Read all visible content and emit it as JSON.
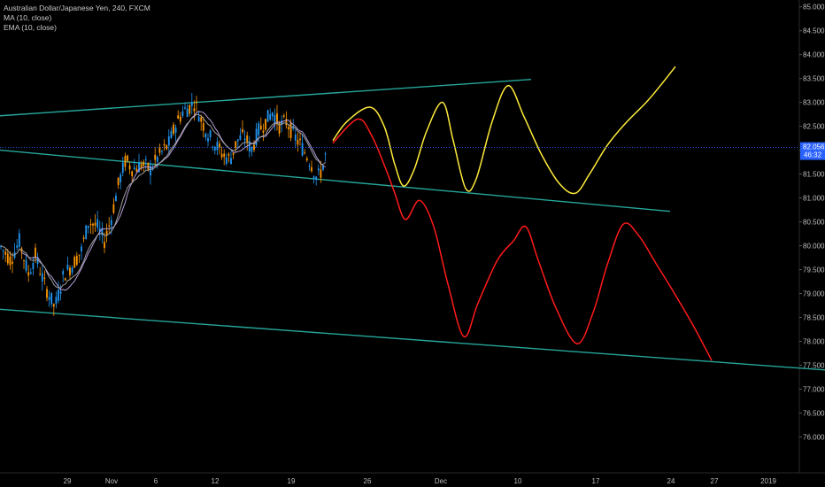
{
  "legend": {
    "title": "Australian Dollar/Japanese Yen, 240, FXCM",
    "ma": "MA (10, close)",
    "ema": "EMA (10, close)"
  },
  "colors": {
    "background": "#000000",
    "channel": "#26a69a",
    "forecast_up": "#ffeb3b",
    "forecast_down": "#ff1a1a",
    "candle_up": "#2196f3",
    "candle_down": "#ff9800",
    "ma": "#b39ddb",
    "ema": "#9e9e9e",
    "price_line": "#2962ff"
  },
  "chart_data": {
    "type": "line",
    "symbol": "AUDJPY",
    "x_axis_labels": [
      "29",
      "Nov",
      "6",
      "12",
      "19",
      "26",
      "Dec",
      "10",
      "17",
      "24",
      "27",
      "2019"
    ],
    "y_axis_labels": [
      "85.000",
      "84.500",
      "84.000",
      "83.500",
      "83.000",
      "82.500",
      "82.000",
      "81.500",
      "81.000",
      "80.500",
      "80.000",
      "79.500",
      "79.000",
      "78.500",
      "78.000",
      "77.500",
      "77.000",
      "76.500",
      "76.000"
    ],
    "ylim": [
      75.6,
      85.05
    ],
    "current_price": "82.056",
    "countdown": "46:32",
    "price_path": [
      [
        0,
        80.0
      ],
      [
        12,
        79.7
      ],
      [
        22,
        80.1
      ],
      [
        32,
        79.4
      ],
      [
        40,
        79.8
      ],
      [
        50,
        79.2
      ],
      [
        62,
        78.7
      ],
      [
        72,
        79.4
      ],
      [
        82,
        79.6
      ],
      [
        92,
        79.9
      ],
      [
        100,
        80.5
      ],
      [
        110,
        80.4
      ],
      [
        118,
        80.1
      ],
      [
        126,
        80.6
      ],
      [
        134,
        81.3
      ],
      [
        142,
        81.8
      ],
      [
        150,
        81.6
      ],
      [
        160,
        81.7
      ],
      [
        170,
        81.6
      ],
      [
        180,
        81.9
      ],
      [
        190,
        82.1
      ],
      [
        198,
        82.5
      ],
      [
        206,
        82.8
      ],
      [
        214,
        82.9
      ],
      [
        220,
        83.0
      ],
      [
        228,
        82.6
      ],
      [
        236,
        82.3
      ],
      [
        244,
        82.1
      ],
      [
        252,
        81.9
      ],
      [
        260,
        81.8
      ],
      [
        268,
        82.2
      ],
      [
        276,
        82.3
      ],
      [
        284,
        82.0
      ],
      [
        292,
        82.4
      ],
      [
        300,
        82.6
      ],
      [
        308,
        82.8
      ],
      [
        316,
        82.5
      ],
      [
        324,
        82.6
      ],
      [
        332,
        82.3
      ],
      [
        340,
        82.1
      ],
      [
        346,
        81.9
      ],
      [
        352,
        81.7
      ],
      [
        358,
        81.4
      ],
      [
        364,
        81.6
      ],
      [
        370,
        82.06
      ]
    ],
    "channel_lines": [
      {
        "from": [
          0,
          82.72
        ],
        "to": [
          600,
          83.48
        ]
      },
      {
        "from": [
          0,
          82.0
        ],
        "to": [
          757,
          80.72
        ]
      },
      {
        "from": [
          0,
          78.67
        ],
        "to": [
          932,
          77.4
        ]
      }
    ],
    "forecast_yellow": [
      [
        376,
        82.2
      ],
      [
        392,
        82.6
      ],
      [
        418,
        82.9
      ],
      [
        434,
        82.5
      ],
      [
        446,
        81.7
      ],
      [
        456,
        81.25
      ],
      [
        468,
        81.6
      ],
      [
        482,
        82.4
      ],
      [
        500,
        83.0
      ],
      [
        512,
        82.2
      ],
      [
        526,
        81.2
      ],
      [
        538,
        81.4
      ],
      [
        556,
        82.6
      ],
      [
        574,
        83.35
      ],
      [
        592,
        82.7
      ],
      [
        612,
        81.9
      ],
      [
        632,
        81.3
      ],
      [
        650,
        81.1
      ],
      [
        666,
        81.5
      ],
      [
        686,
        82.1
      ],
      [
        706,
        82.55
      ],
      [
        730,
        83.0
      ],
      [
        746,
        83.35
      ],
      [
        763,
        83.75
      ]
    ],
    "forecast_red": [
      [
        376,
        82.15
      ],
      [
        404,
        82.65
      ],
      [
        420,
        82.3
      ],
      [
        436,
        81.6
      ],
      [
        446,
        81.1
      ],
      [
        458,
        80.55
      ],
      [
        474,
        80.95
      ],
      [
        490,
        80.4
      ],
      [
        506,
        79.2
      ],
      [
        524,
        78.1
      ],
      [
        540,
        78.8
      ],
      [
        562,
        79.7
      ],
      [
        580,
        80.1
      ],
      [
        594,
        80.4
      ],
      [
        608,
        79.7
      ],
      [
        628,
        78.7
      ],
      [
        652,
        77.95
      ],
      [
        670,
        78.6
      ],
      [
        686,
        79.6
      ],
      [
        704,
        80.45
      ],
      [
        722,
        80.2
      ],
      [
        742,
        79.6
      ],
      [
        762,
        79.0
      ],
      [
        784,
        78.3
      ],
      [
        804,
        77.6
      ]
    ]
  }
}
